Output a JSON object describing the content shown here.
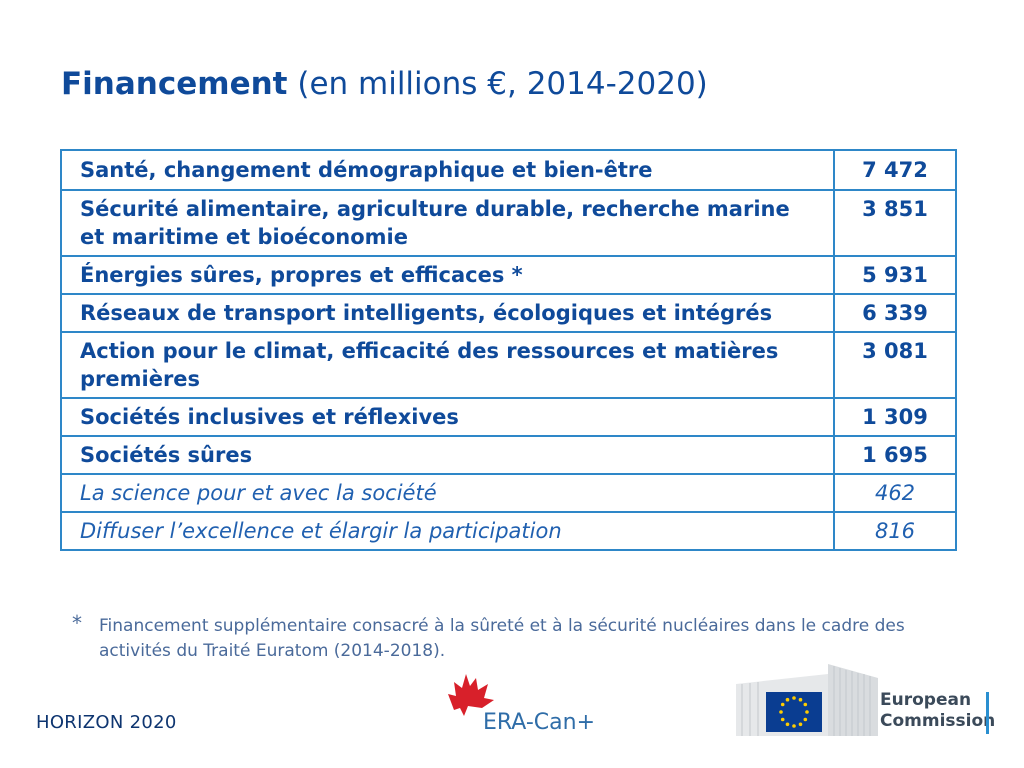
{
  "title": {
    "bold": "Financement",
    "rest": "(en millions €, 2014-2020)"
  },
  "rows": [
    {
      "label": "Santé, changement démographique et bien-être",
      "value": "7 472",
      "style": "bold"
    },
    {
      "label": "Sécurité alimentaire, agriculture durable, recherche marine et maritime et bioéconomie",
      "value": "3 851",
      "style": "bold"
    },
    {
      "label": "Énergies sûres, propres et efficaces *",
      "value": "5 931",
      "style": "bold"
    },
    {
      "label": "Réseaux de transport intelligents, écologiques et intégrés",
      "value": "6 339",
      "style": "bold"
    },
    {
      "label": "Action pour le climat, efficacité des ressources et matières premières",
      "value": "3 081",
      "style": "bold"
    },
    {
      "label": "Sociétés inclusives et réflexives",
      "value": "1 309",
      "style": "bold"
    },
    {
      "label": "Sociétés sûres",
      "value": "1 695",
      "style": "bold"
    },
    {
      "label": "La science pour et avec la société",
      "value": "462",
      "style": "italic"
    },
    {
      "label": "Diffuser l’excellence et élargir la participation",
      "value": "816",
      "style": "italic"
    }
  ],
  "footnote": {
    "marker": "*",
    "text": "Financement supplémentaire consacré à la sûreté et à la sécurité nucléaires dans le cadre des activités du Traité Euratom (2014-2018)."
  },
  "footer": {
    "program": "HORIZON 2020",
    "era_logo_text": "ERA-Can+",
    "ec_line1": "European",
    "ec_line2": "Commission"
  },
  "colors": {
    "primary": "#0f4a9a",
    "border": "#2e87c8",
    "eu_blue": "#0a3d91",
    "eu_gold": "#ffcc00",
    "maple": "#d8202a"
  }
}
